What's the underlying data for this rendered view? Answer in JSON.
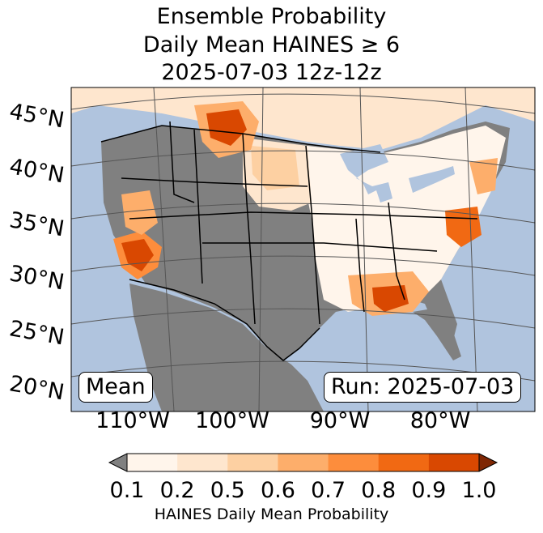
{
  "title": {
    "line1": "Ensemble Probability",
    "line2": "Daily Mean HAINES ≥ 6",
    "line3": "2025-07-03 12z-12z"
  },
  "map": {
    "lat_labels": [
      "45°N",
      "40°N",
      "35°N",
      "30°N",
      "25°N",
      "20°N"
    ],
    "lon_labels": [
      "110°W",
      "100°W",
      "90°W",
      "80°W"
    ],
    "mean_label": "Mean",
    "run_label": "Run: 2025-07-03",
    "colors": {
      "ocean": "#b0c4de",
      "land_low": "#808080",
      "border": "#000000"
    }
  },
  "colorbar": {
    "label": "HAINES Daily Mean Probability",
    "ticks": [
      "0.1",
      "0.2",
      "0.5",
      "0.6",
      "0.7",
      "0.8",
      "0.9",
      "1.0"
    ],
    "colors": [
      "#fff5eb",
      "#fee6ce",
      "#fdd0a2",
      "#fdae6b",
      "#fd8d3c",
      "#f16913",
      "#d94801",
      "#a63603"
    ],
    "under_color": "#808080",
    "over_color": "#7f2704"
  }
}
